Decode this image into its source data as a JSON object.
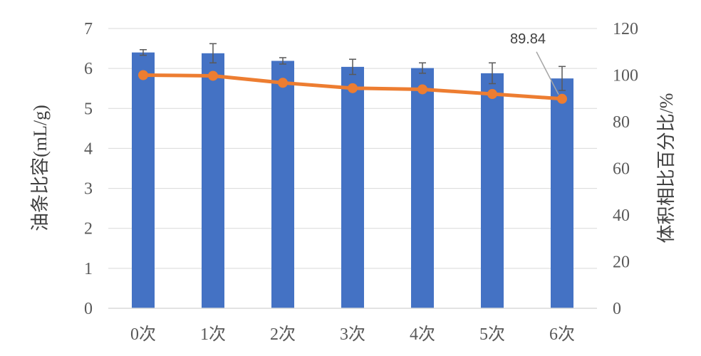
{
  "chart_data": {
    "type": "bar",
    "categories": [
      "0次",
      "1次",
      "2次",
      "3次",
      "4次",
      "5次",
      "6次"
    ],
    "series": [
      {
        "type": "bar",
        "axis": "left",
        "color": "#4472C4",
        "values": [
          6.4,
          6.38,
          6.19,
          6.04,
          6.01,
          5.88,
          5.75
        ],
        "error": [
          0.07,
          0.24,
          0.08,
          0.19,
          0.13,
          0.26,
          0.3
        ]
      },
      {
        "type": "line",
        "axis": "right",
        "color": "#ED7D31",
        "values": [
          100,
          99.7,
          96.7,
          94.4,
          93.9,
          91.9,
          89.84
        ]
      }
    ],
    "ylabel": "油条比容(mL/g)",
    "ylim": [
      0,
      7
    ],
    "yticks": [
      "0",
      "1",
      "2",
      "3",
      "4",
      "5",
      "6",
      "7"
    ],
    "y2label": "体积相比百分比/%",
    "y2lim": [
      0,
      120
    ],
    "y2ticks": [
      "0",
      "20",
      "40",
      "60",
      "80",
      "100",
      "120"
    ],
    "grid": true,
    "annotation": {
      "text": "89.84",
      "category_index": 6
    }
  }
}
